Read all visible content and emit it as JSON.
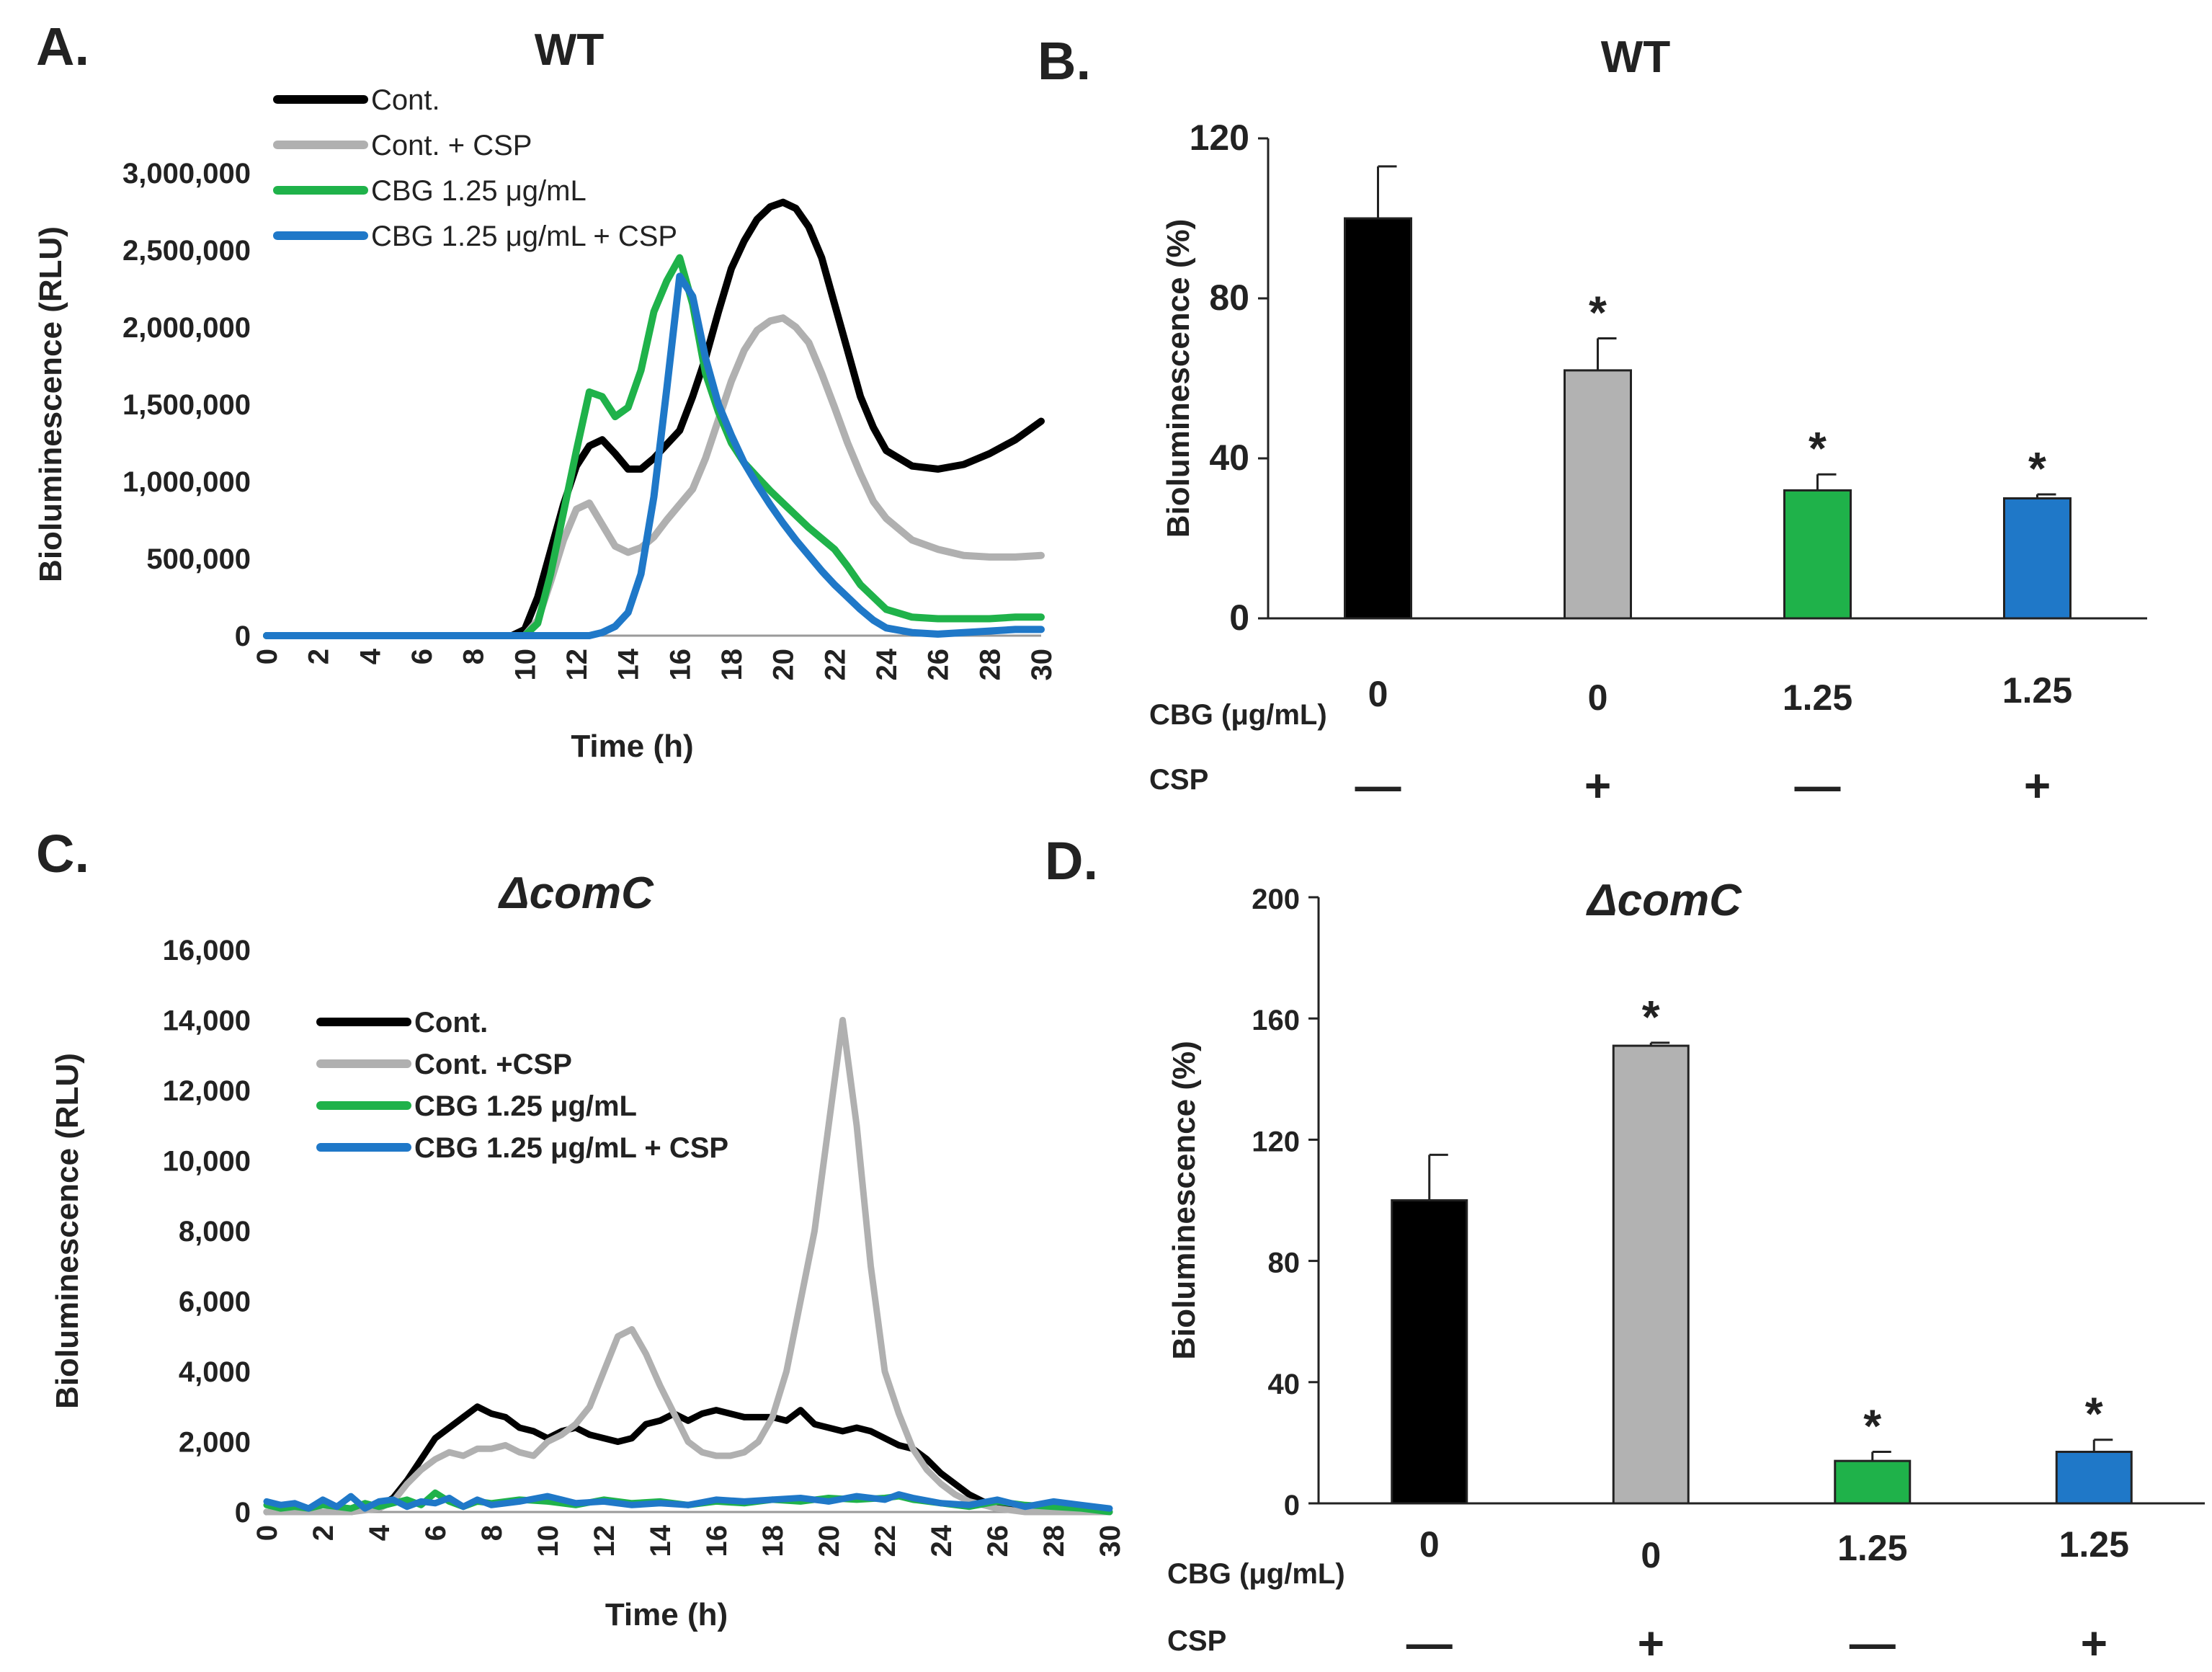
{
  "figure": {
    "panels": {
      "A": {
        "letter": "A.",
        "title": "WT"
      },
      "B": {
        "letter": "B.",
        "title": "WT"
      },
      "C": {
        "letter": "C.",
        "title": "ΔcomC"
      },
      "D": {
        "letter": "D.",
        "title": "ΔcomC"
      }
    }
  },
  "chart_data": [
    {
      "id": "A",
      "type": "line",
      "title": "WT",
      "xlabel": "Time (h)",
      "ylabel": "Bioluminescence (RLU)",
      "xlim": [
        0,
        30
      ],
      "ylim": [
        0,
        3000000
      ],
      "xticks": [
        "0",
        "2",
        "4",
        "6",
        "8",
        "10",
        "12",
        "14",
        "16",
        "18",
        "20",
        "22",
        "24",
        "26",
        "28",
        "30"
      ],
      "yticks": [
        "0",
        "500,000",
        "1,000,000",
        "1,500,000",
        "2,000,000",
        "2,500,000",
        "3,000,000"
      ],
      "legend_position": "top-left",
      "series": [
        {
          "name": "Cont.",
          "color": "#000000",
          "x": [
            0,
            9.5,
            10,
            10.5,
            11,
            11.5,
            12,
            12.5,
            13,
            13.5,
            14,
            14.5,
            15,
            15.5,
            16,
            16.5,
            17,
            17.5,
            18,
            18.5,
            19,
            19.5,
            20,
            20.5,
            21,
            21.5,
            22,
            22.5,
            23,
            23.5,
            24,
            25,
            26,
            27,
            28,
            29,
            30
          ],
          "y": [
            0,
            0,
            40000,
            250000,
            550000,
            850000,
            1100000,
            1230000,
            1270000,
            1180000,
            1080000,
            1080000,
            1150000,
            1240000,
            1330000,
            1550000,
            1800000,
            2100000,
            2380000,
            2560000,
            2700000,
            2780000,
            2810000,
            2770000,
            2650000,
            2450000,
            2150000,
            1850000,
            1550000,
            1350000,
            1200000,
            1100000,
            1080000,
            1110000,
            1180000,
            1270000,
            1390000
          ]
        },
        {
          "name": "Cont. + CSP",
          "color": "#b0b0b0",
          "x": [
            0,
            10,
            10.5,
            11,
            11.5,
            12,
            12.5,
            13,
            13.5,
            14,
            14.5,
            15,
            15.5,
            16,
            16.5,
            17,
            17.5,
            18,
            18.5,
            19,
            19.5,
            20,
            20.5,
            21,
            21.5,
            22,
            22.5,
            23,
            23.5,
            24,
            25,
            26,
            27,
            28,
            29,
            30
          ],
          "y": [
            0,
            0,
            100000,
            350000,
            620000,
            820000,
            860000,
            720000,
            580000,
            540000,
            570000,
            640000,
            750000,
            850000,
            950000,
            1150000,
            1400000,
            1650000,
            1850000,
            1980000,
            2040000,
            2060000,
            2000000,
            1900000,
            1700000,
            1480000,
            1250000,
            1050000,
            870000,
            760000,
            620000,
            560000,
            520000,
            510000,
            510000,
            520000
          ]
        },
        {
          "name": "CBG 1.25 μg/mL",
          "color": "#1fb24a",
          "x": [
            0,
            10,
            10.5,
            11,
            11.5,
            12,
            12.5,
            13,
            13.5,
            14,
            14.5,
            15,
            15.5,
            16,
            16.5,
            17,
            17.5,
            18,
            18.5,
            19,
            19.5,
            20,
            20.5,
            21,
            21.5,
            22,
            22.5,
            23,
            23.5,
            24,
            25,
            26,
            27,
            28,
            29,
            30
          ],
          "y": [
            0,
            0,
            80000,
            400000,
            800000,
            1200000,
            1580000,
            1550000,
            1420000,
            1480000,
            1720000,
            2100000,
            2300000,
            2450000,
            2150000,
            1700000,
            1450000,
            1250000,
            1120000,
            1030000,
            940000,
            860000,
            780000,
            700000,
            630000,
            560000,
            450000,
            330000,
            250000,
            170000,
            120000,
            110000,
            110000,
            110000,
            120000,
            120000
          ]
        },
        {
          "name": "CBG 1.25 μg/mL + CSP",
          "color": "#1f78c8",
          "x": [
            0,
            12.5,
            13,
            13.5,
            14,
            14.5,
            15,
            15.5,
            16,
            16.5,
            17,
            17.5,
            18,
            18.5,
            19,
            19.5,
            20,
            20.5,
            21,
            21.5,
            22,
            22.5,
            23,
            23.5,
            24,
            25,
            26,
            27,
            28,
            29,
            30
          ],
          "y": [
            0,
            0,
            20000,
            60000,
            150000,
            400000,
            900000,
            1600000,
            2330000,
            2200000,
            1800000,
            1500000,
            1300000,
            1120000,
            980000,
            850000,
            730000,
            620000,
            520000,
            420000,
            330000,
            250000,
            170000,
            100000,
            50000,
            20000,
            10000,
            20000,
            30000,
            40000,
            40000
          ]
        }
      ]
    },
    {
      "id": "B",
      "type": "bar",
      "title": "WT",
      "ylabel": "Bioluminescence (%)",
      "ylim": [
        0,
        120
      ],
      "yticks": [
        "0",
        "40",
        "80",
        "120"
      ],
      "categories": [
        "1",
        "2",
        "3",
        "4"
      ],
      "values": [
        100,
        62,
        32,
        30
      ],
      "errors": [
        13,
        8,
        4,
        1
      ],
      "colors": [
        "#000000",
        "#b2b2b2",
        "#1fb24a",
        "#1f78c8"
      ],
      "significance": [
        "",
        "*",
        "*",
        "*"
      ],
      "condition_rows": [
        {
          "label": "CBG (μg/mL)",
          "values": [
            "0",
            "0",
            "1.25",
            "1.25"
          ]
        },
        {
          "label": "CSP",
          "values": [
            "—",
            "+",
            "—",
            "+"
          ]
        }
      ]
    },
    {
      "id": "C",
      "type": "line",
      "title": "ΔcomC",
      "xlabel": "Time (h)",
      "ylabel": "Bioluminescence (RLU)",
      "xlim": [
        0,
        30
      ],
      "ylim": [
        0,
        16000
      ],
      "xticks": [
        "0",
        "2",
        "4",
        "6",
        "8",
        "10",
        "12",
        "14",
        "16",
        "18",
        "20",
        "22",
        "24",
        "26",
        "28",
        "30"
      ],
      "yticks": [
        "0",
        "2,000",
        "4,000",
        "6,000",
        "8,000",
        "10,000",
        "12,000",
        "14,000",
        "16,000"
      ],
      "legend_position": "top-left",
      "series": [
        {
          "name": "Cont.",
          "color": "#000000",
          "x": [
            0,
            1,
            2,
            3,
            4,
            4.5,
            5,
            5.5,
            6,
            6.5,
            7,
            7.5,
            8,
            8.5,
            9,
            9.5,
            10,
            10.5,
            11,
            11.5,
            12,
            12.5,
            13,
            13.5,
            14,
            14.5,
            15,
            15.5,
            16,
            16.5,
            17,
            17.5,
            18,
            18.5,
            19,
            19.5,
            20,
            20.5,
            21,
            21.5,
            22,
            22.5,
            23,
            23.5,
            24,
            24.5,
            25,
            25.5,
            26,
            27,
            28,
            29,
            30
          ],
          "y": [
            0,
            0,
            0,
            0,
            150,
            400,
            900,
            1500,
            2100,
            2400,
            2700,
            3000,
            2800,
            2700,
            2400,
            2300,
            2100,
            2300,
            2400,
            2200,
            2100,
            2000,
            2100,
            2500,
            2600,
            2800,
            2600,
            2800,
            2900,
            2800,
            2700,
            2700,
            2700,
            2600,
            2900,
            2500,
            2400,
            2300,
            2400,
            2300,
            2100,
            1900,
            1800,
            1500,
            1100,
            800,
            500,
            300,
            200,
            100,
            50,
            0,
            0
          ]
        },
        {
          "name": "Cont. +CSP",
          "color": "#b0b0b0",
          "x": [
            0,
            1,
            2,
            3,
            4,
            4.5,
            5,
            5.5,
            6,
            6.5,
            7,
            7.5,
            8,
            8.5,
            9,
            9.5,
            10,
            10.5,
            11,
            11.5,
            12,
            12.5,
            13,
            13.5,
            14,
            14.5,
            15,
            15.5,
            16,
            16.5,
            17,
            17.5,
            18,
            18.5,
            19,
            19.5,
            20,
            20.5,
            21,
            21.5,
            22,
            22.5,
            23,
            23.5,
            24,
            24.5,
            25,
            25.5,
            26,
            27,
            28,
            29,
            30
          ],
          "y": [
            0,
            0,
            0,
            0,
            100,
            300,
            800,
            1200,
            1500,
            1700,
            1600,
            1800,
            1800,
            1900,
            1700,
            1600,
            2000,
            2200,
            2500,
            3000,
            4000,
            5000,
            5200,
            4500,
            3600,
            2800,
            2000,
            1700,
            1600,
            1600,
            1700,
            2000,
            2700,
            4000,
            6000,
            8000,
            11000,
            14000,
            11000,
            7000,
            4000,
            2800,
            1800,
            1200,
            800,
            500,
            300,
            200,
            100,
            0,
            0,
            0,
            0
          ]
        },
        {
          "name": "CBG 1.25 μg/mL",
          "color": "#1fb24a",
          "x": [
            0,
            0.5,
            1,
            1.5,
            2,
            2.5,
            3,
            3.5,
            4,
            4.5,
            5,
            5.5,
            6,
            6.5,
            7,
            7.5,
            8,
            9,
            10,
            11,
            12,
            13,
            14,
            15,
            16,
            17,
            18,
            19,
            20,
            21,
            22,
            22.5,
            23,
            24,
            25,
            26,
            27,
            28,
            29,
            30
          ],
          "y": [
            200,
            100,
            150,
            100,
            200,
            150,
            100,
            250,
            150,
            250,
            350,
            200,
            550,
            300,
            150,
            300,
            250,
            350,
            300,
            200,
            350,
            250,
            300,
            200,
            300,
            250,
            350,
            300,
            400,
            350,
            400,
            450,
            350,
            250,
            150,
            300,
            200,
            150,
            100,
            0
          ]
        },
        {
          "name": "CBG 1.25 μg/mL + CSP",
          "color": "#1f78c8",
          "x": [
            0,
            0.5,
            1,
            1.5,
            2,
            2.5,
            3,
            3.5,
            4,
            4.5,
            5,
            5.5,
            6,
            6.5,
            7,
            7.5,
            8,
            9,
            10,
            10.5,
            11,
            12,
            13,
            14,
            15,
            16,
            17,
            18,
            19,
            20,
            21,
            22,
            22.5,
            23,
            24,
            25,
            26,
            27,
            28,
            29,
            30
          ],
          "y": [
            300,
            200,
            250,
            100,
            350,
            150,
            450,
            100,
            300,
            350,
            150,
            300,
            250,
            400,
            150,
            350,
            200,
            300,
            450,
            350,
            250,
            300,
            200,
            250,
            200,
            350,
            300,
            350,
            400,
            300,
            450,
            350,
            500,
            400,
            250,
            200,
            350,
            150,
            300,
            200,
            100
          ]
        }
      ]
    },
    {
      "id": "D",
      "type": "bar",
      "title": "ΔcomC",
      "ylabel": "Bioluminescence (%)",
      "ylim": [
        0,
        200
      ],
      "yticks": [
        "0",
        "40",
        "80",
        "120",
        "160",
        "200"
      ],
      "categories": [
        "1",
        "2",
        "3",
        "4"
      ],
      "values": [
        100,
        151,
        14,
        17
      ],
      "errors": [
        15,
        1,
        3,
        4
      ],
      "colors": [
        "#000000",
        "#b2b2b2",
        "#1fb24a",
        "#1f78c8"
      ],
      "significance": [
        "",
        "*",
        "*",
        "*"
      ],
      "condition_rows": [
        {
          "label": "CBG (μg/mL)",
          "values": [
            "0",
            "0",
            "1.25",
            "1.25"
          ]
        },
        {
          "label": "CSP",
          "values": [
            "—",
            "+",
            "—",
            "+"
          ]
        }
      ]
    }
  ]
}
